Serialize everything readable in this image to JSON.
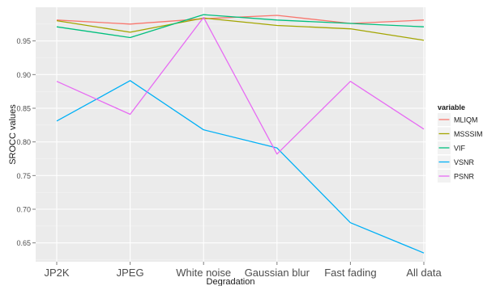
{
  "chart_data": {
    "type": "line",
    "xlabel": "Degradation",
    "ylabel": "SROCC values",
    "categories": [
      "JP2K",
      "JPEG",
      "White noise",
      "Gaussian blur",
      "Fast fading",
      "All data"
    ],
    "yticks": [
      "0.65",
      "0.70",
      "0.75",
      "0.80",
      "0.85",
      "0.90",
      "0.95"
    ],
    "ylim": [
      0.622,
      1.0
    ],
    "grid": true,
    "legend_position": "right",
    "legend_title": "variable",
    "background": "#ebebeb",
    "series": [
      {
        "name": "MLIQM",
        "color": "#f8766d",
        "values": [
          0.981,
          0.975,
          0.983,
          0.988,
          0.976,
          0.981
        ]
      },
      {
        "name": "MSSSIM",
        "color": "#a3a500",
        "values": [
          0.98,
          0.963,
          0.984,
          0.973,
          0.968,
          0.951
        ]
      },
      {
        "name": "VIF",
        "color": "#00bf7d",
        "values": [
          0.971,
          0.955,
          0.989,
          0.981,
          0.976,
          0.971
        ]
      },
      {
        "name": "VSNR",
        "color": "#00b0f6",
        "values": [
          0.831,
          0.891,
          0.818,
          0.791,
          0.68,
          0.635
        ]
      },
      {
        "name": "PSNR",
        "color": "#e76bf3",
        "values": [
          0.89,
          0.841,
          0.985,
          0.782,
          0.89,
          0.819
        ]
      }
    ]
  }
}
